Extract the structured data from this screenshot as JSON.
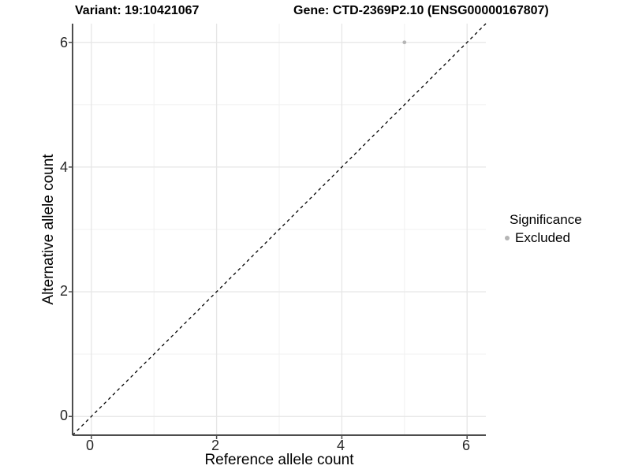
{
  "titles": {
    "variant": "Variant: 19:10421067",
    "gene": "Gene: CTD-2369P2.10 (ENSG00000167807)"
  },
  "axes": {
    "x": {
      "label": "Reference allele count",
      "ticks": [
        "0",
        "2",
        "4",
        "6"
      ]
    },
    "y": {
      "label": "Alternative allele count",
      "ticks": [
        "0",
        "2",
        "4",
        "6"
      ]
    }
  },
  "legend": {
    "title": "Significance",
    "items": [
      {
        "label": "Excluded",
        "color": "#b5b5b5"
      }
    ]
  },
  "chart_data": {
    "type": "scatter",
    "title": "Variant: 19:10421067 / Gene: CTD-2369P2.10 (ENSG00000167807)",
    "xlabel": "Reference allele count",
    "ylabel": "Alternative allele count",
    "xlim": [
      -0.3,
      6.3
    ],
    "ylim": [
      -0.3,
      6.3
    ],
    "grid": {
      "major": [
        0,
        2,
        4,
        6
      ],
      "minor": [
        1,
        3,
        5
      ]
    },
    "series": [
      {
        "name": "Excluded",
        "color": "#b5b5b5",
        "points": [
          {
            "x": 5,
            "y": 6
          }
        ]
      }
    ],
    "reference_line": {
      "type": "identity",
      "style": "dashed",
      "color": "#000000"
    },
    "colors": {
      "axis_line": "#4d4d4d",
      "grid_major": "#e6e6e6",
      "grid_minor": "#f1f1f1",
      "tick_text": "#262626"
    }
  }
}
